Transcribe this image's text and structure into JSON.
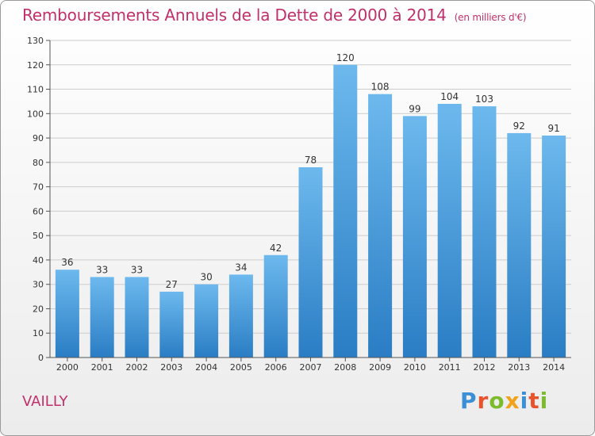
{
  "header": {
    "title": "Remboursements Annuels de la Dette de 2000 à 2014",
    "subtitle": "(en milliers d'€)"
  },
  "footer": {
    "commune": "VAILLY",
    "logo_text": "Proxiti",
    "logo_colors": [
      "#3b8fd6",
      "#e8532e",
      "#7cbb2b",
      "#f2a21a",
      "#3b8fd6",
      "#e8532e",
      "#7cbb2b"
    ]
  },
  "colors": {
    "bar_light": "#6db9ee",
    "bar_dark": "#2a7dc4",
    "grid": "#cccccc",
    "axis": "#555555",
    "accent": "#c0306a"
  },
  "chart_data": {
    "type": "bar",
    "categories": [
      "2000",
      "2001",
      "2002",
      "2003",
      "2004",
      "2005",
      "2006",
      "2007",
      "2008",
      "2009",
      "2010",
      "2011",
      "2012",
      "2013",
      "2014"
    ],
    "values": [
      36,
      33,
      33,
      27,
      30,
      34,
      42,
      78,
      120,
      108,
      99,
      104,
      103,
      92,
      91
    ],
    "ylim": [
      0,
      130
    ],
    "yticks": [
      0,
      10,
      20,
      30,
      40,
      50,
      60,
      70,
      80,
      90,
      100,
      110,
      120,
      130
    ],
    "grid": true,
    "title": "Remboursements Annuels de la Dette de 2000 à 2014",
    "subtitle": "(en milliers d'€)",
    "xlabel": "",
    "ylabel": ""
  }
}
